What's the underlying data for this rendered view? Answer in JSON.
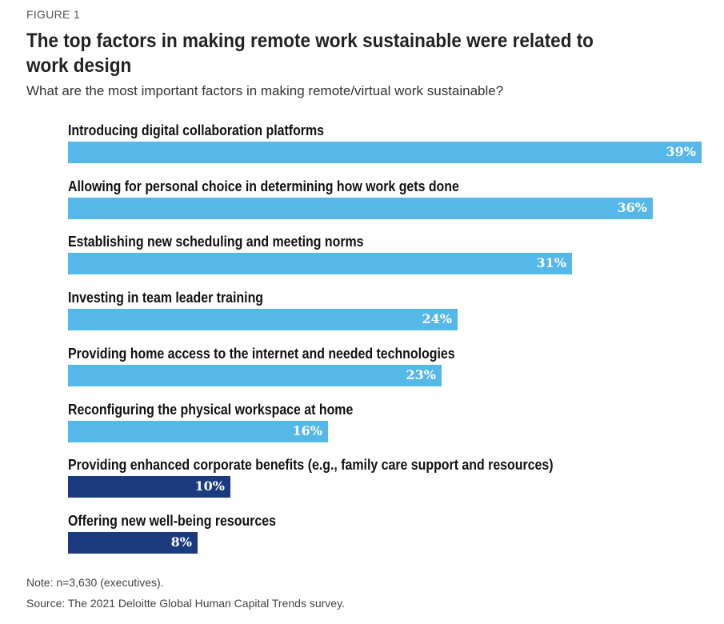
{
  "figure_label": "FIGURE 1",
  "title_lines": [
    "The top factors in making remote work sustainable were related to",
    "work design"
  ],
  "subtitle": "What are the most important factors in making remote/virtual work sustainable?",
  "chart_data": {
    "type": "bar",
    "orientation": "horizontal",
    "categories": [
      "Introducing digital collaboration platforms",
      "Allowing for personal choice in determining how work gets done",
      "Establishing new scheduling and meeting norms",
      "Investing in team leader training",
      "Providing home access to the internet and needed technologies",
      "Reconfiguring the physical workspace at home",
      "Providing enhanced corporate benefits (e.g., family care support and resources)",
      "Offering new well-being resources"
    ],
    "values": [
      39,
      36,
      31,
      24,
      23,
      16,
      10,
      8
    ],
    "value_labels": [
      "39%",
      "36%",
      "31%",
      "24%",
      "23%",
      "16%",
      "10%",
      "8%"
    ],
    "value_unit": "%",
    "bar_colors": [
      "#55b8e8",
      "#55b8e8",
      "#55b8e8",
      "#55b8e8",
      "#55b8e8",
      "#55b8e8",
      "#1c3a7e",
      "#1c3a7e"
    ],
    "xlim": [
      0,
      39
    ],
    "grid": false,
    "legend": "none"
  },
  "notes": {
    "note": "Note: n=3,630 (executives).",
    "source": "Source: The 2021 Deloitte Global Human Capital Trends survey."
  }
}
